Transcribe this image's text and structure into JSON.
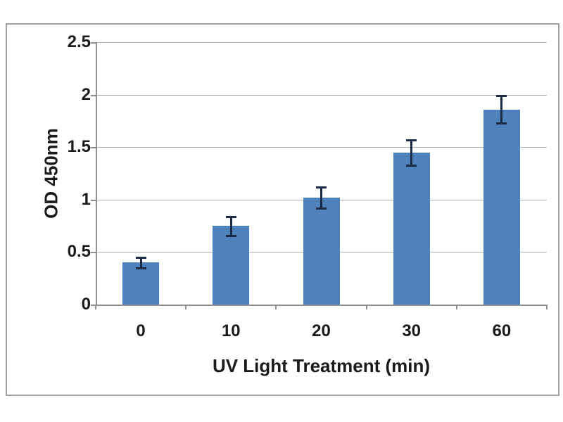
{
  "chart_data": {
    "type": "bar",
    "title": "",
    "xlabel": "UV Light Treatment (min)",
    "ylabel": "OD 450nm",
    "categories": [
      "0",
      "10",
      "20",
      "30",
      "60"
    ],
    "values": [
      0.4,
      0.75,
      1.02,
      1.45,
      1.86
    ],
    "errors": [
      0.05,
      0.09,
      0.1,
      0.12,
      0.13
    ],
    "ylim": [
      0,
      2.5
    ],
    "ytick_interval": 0.5,
    "ytick_labels": [
      "0",
      "0.5",
      "1",
      "1.5",
      "2",
      "2.5"
    ],
    "grid": "horizontal",
    "legend": "none",
    "colors": {
      "bar_fill": "#4f81bd",
      "error_bar": "#1c2b45",
      "gridline": "#adadad",
      "axis_line": "#8f8f8f",
      "frame_border": "#a0a0a0",
      "text": "#1a1a1a",
      "background": "#ffffff"
    }
  }
}
